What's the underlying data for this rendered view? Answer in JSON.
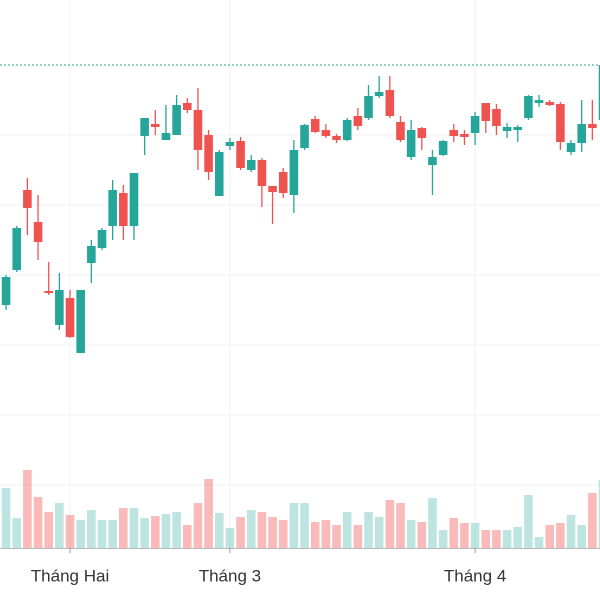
{
  "chart_data": {
    "type": "candlestick",
    "categories": [
      null,
      null,
      null,
      null,
      null,
      null,
      null,
      "Tháng Hai",
      null,
      null,
      null,
      null,
      null,
      null,
      null,
      null,
      null,
      null,
      null,
      null,
      null,
      null,
      "Tháng 3",
      null,
      null,
      null,
      null,
      null,
      null,
      null,
      null,
      null,
      null,
      null,
      null,
      null,
      null,
      null,
      null,
      null,
      null,
      null,
      null,
      null,
      null,
      "Tháng 4",
      null,
      null,
      null,
      null,
      null,
      null,
      null,
      null,
      null,
      null,
      null,
      null
    ],
    "open": [
      245,
      295,
      330,
      410,
      378,
      309,
      275,
      302,
      247,
      337,
      352,
      374,
      407,
      374,
      464,
      476,
      460,
      465,
      497,
      490,
      465,
      404,
      454,
      459,
      430,
      440,
      414,
      428,
      405,
      452,
      481,
      470,
      464,
      460,
      484,
      482,
      504,
      510,
      478,
      443,
      472,
      435,
      445,
      470,
      466,
      467,
      497,
      491,
      469,
      470,
      482,
      497,
      498,
      496,
      448,
      457,
      476,
      480
    ],
    "high": [
      295,
      325,
      374,
      422,
      405,
      338,
      327,
      310,
      310,
      360,
      372,
      420,
      415,
      427,
      482,
      490,
      495,
      505,
      502,
      512,
      470,
      450,
      462,
      463,
      445,
      442,
      414,
      432,
      460,
      476,
      484,
      476,
      466,
      482,
      492,
      515,
      524,
      524,
      484,
      480,
      473,
      450,
      460,
      476,
      470,
      488,
      497,
      496,
      477,
      475,
      505,
      505,
      500,
      498,
      460,
      500,
      500,
      538
    ],
    "low": [
      245,
      290,
      328,
      365,
      340,
      305,
      270,
      262,
      247,
      317,
      350,
      360,
      360,
      360,
      445,
      465,
      460,
      465,
      487,
      430,
      420,
      404,
      450,
      430,
      428,
      393,
      376,
      402,
      387,
      450,
      467,
      462,
      457,
      459,
      470,
      480,
      502,
      482,
      458,
      440,
      450,
      405,
      444,
      458,
      455,
      455,
      467,
      465,
      462,
      458,
      480,
      493,
      494,
      450,
      445,
      448,
      460,
      475
    ],
    "close": [
      290,
      323,
      372,
      392,
      358,
      307,
      310,
      263,
      310,
      354,
      370,
      410,
      374,
      427,
      482,
      473,
      467,
      495,
      490,
      450,
      428,
      448,
      458,
      432,
      440,
      414,
      408,
      407,
      450,
      475,
      468,
      464,
      460,
      480,
      474,
      504,
      508,
      484,
      460,
      470,
      462,
      443,
      459,
      464,
      463,
      484,
      479,
      474,
      473,
      473,
      504,
      500,
      495,
      458,
      457,
      476,
      472,
      535
    ],
    "volume": [
      60,
      60,
      30,
      78,
      51,
      36,
      45,
      33,
      28,
      38,
      28,
      28,
      40,
      40,
      30,
      32,
      34,
      36,
      23,
      45,
      69,
      35,
      20,
      31,
      38,
      36,
      31,
      28,
      45,
      45,
      26,
      28,
      23,
      36,
      23,
      36,
      31,
      48,
      45,
      28,
      26,
      50,
      18,
      30,
      25,
      25,
      18,
      18,
      18,
      21,
      53,
      11,
      23,
      25,
      33,
      23,
      55,
      68
    ],
    "up_color": "#26a69a",
    "down_color": "#ef5350",
    "ylim": [
      0,
      600
    ]
  }
}
